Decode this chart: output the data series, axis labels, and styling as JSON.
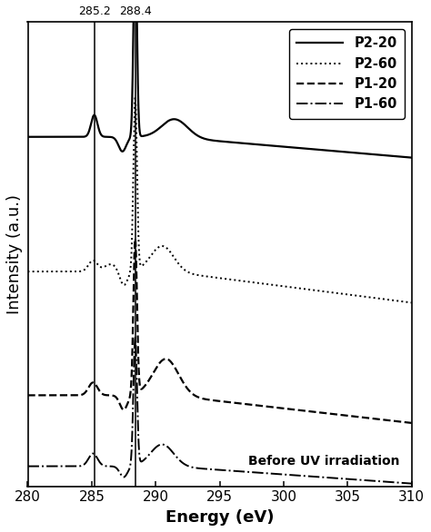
{
  "title": "",
  "xlabel": "Energy (eV)",
  "ylabel": "Intensity (a.u.)",
  "xlim": [
    280,
    310
  ],
  "vlines": [
    285.2,
    288.4
  ],
  "vline_labels": [
    "285.2",
    "288.4"
  ],
  "annotation": "Before UV irradiation",
  "legend_labels": [
    "P2-20",
    "P2-60",
    "P1-20",
    "P1-60"
  ],
  "background_color": "#ffffff",
  "line_color": "#000000",
  "xticks": [
    280,
    285,
    290,
    295,
    300,
    305,
    310
  ],
  "offsets": [
    0.62,
    0.15,
    -0.2,
    -0.48
  ],
  "lws": [
    1.6,
    1.4,
    1.6,
    1.4
  ]
}
